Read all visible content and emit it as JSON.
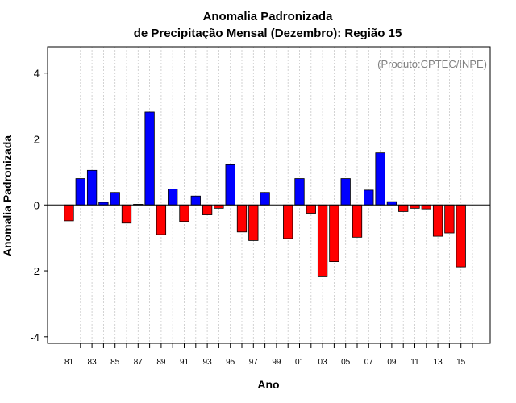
{
  "chart_data": {
    "type": "bar",
    "title": "Anomalia Padronizada",
    "subtitle": "de Precipitação Mensal (Dezembro): Região 15",
    "xlabel": "Ano",
    "ylabel": "Anomalia Padronizada",
    "annotation": "(Produto:CPTEC/INPE)",
    "ylim": [
      -4.2,
      4.8
    ],
    "yticks": [
      -4,
      -2,
      0,
      2,
      4
    ],
    "grid": true,
    "colors": {
      "positive": "#0000ff",
      "negative": "#ff0000"
    },
    "x_tick_labels": [
      "81",
      "83",
      "85",
      "87",
      "89",
      "91",
      "93",
      "95",
      "97",
      "99",
      "01",
      "03",
      "05",
      "07",
      "09",
      "11",
      "13",
      "15"
    ],
    "categories": [
      "1981",
      "1982",
      "1983",
      "1984",
      "1985",
      "1986",
      "1987",
      "1988",
      "1989",
      "1990",
      "1991",
      "1992",
      "1993",
      "1994",
      "1995",
      "1996",
      "1997",
      "1998",
      "1999",
      "2000",
      "2001",
      "2002",
      "2003",
      "2004",
      "2005",
      "2006",
      "2007",
      "2008",
      "2009",
      "2010",
      "2011",
      "2012",
      "2013",
      "2014",
      "2015",
      "2016"
    ],
    "values": [
      -0.48,
      0.8,
      1.05,
      0.08,
      0.38,
      -0.55,
      0.02,
      2.82,
      -0.9,
      0.48,
      -0.5,
      0.27,
      -0.3,
      -0.1,
      1.22,
      -0.82,
      -1.08,
      0.38,
      0.0,
      -1.02,
      0.8,
      -0.25,
      -2.18,
      -1.72,
      0.8,
      -0.98,
      0.45,
      1.58,
      0.1,
      -0.2,
      -0.1,
      -0.12,
      -0.95,
      -0.85,
      -1.88,
      0.0
    ]
  }
}
